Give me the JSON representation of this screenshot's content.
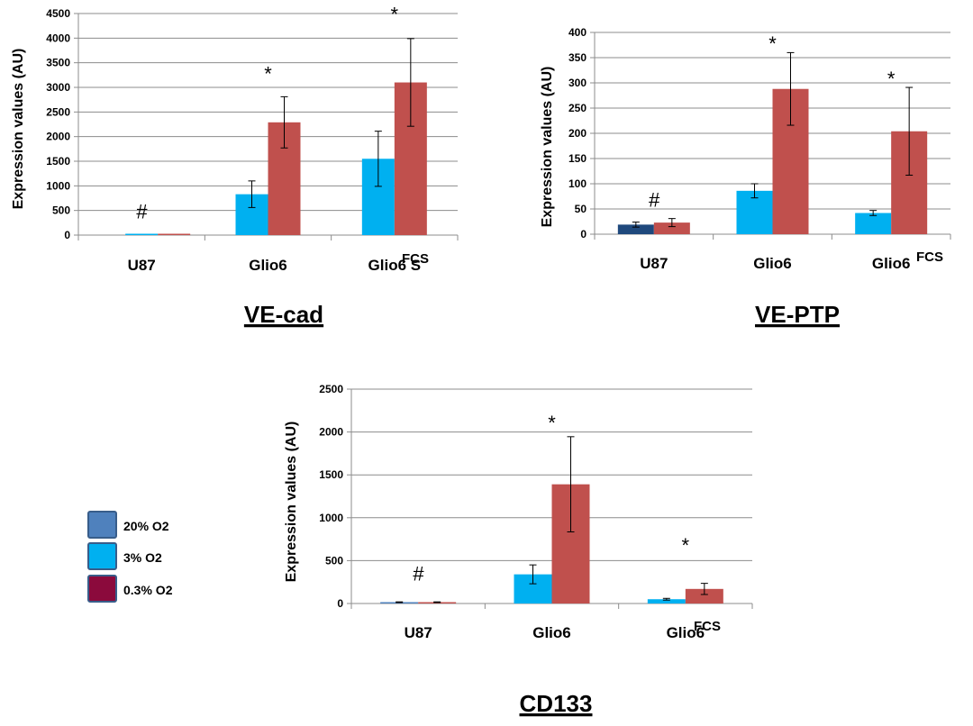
{
  "figure": {
    "legend": {
      "items": [
        {
          "label": "20% O2",
          "color": "#4f81bd"
        },
        {
          "label": " 3% O2",
          "color": "#00b0f0"
        },
        {
          "label": "0.3% O2",
          "color": "#8b0a3c"
        }
      ]
    }
  },
  "chart_data": [
    {
      "type": "bar",
      "title": "VE-cad",
      "ylabel": "Expression values (AU)",
      "ylim": [
        0,
        4500
      ],
      "yticks": [
        0,
        500,
        1000,
        1500,
        2000,
        2500,
        3000,
        3500,
        4000,
        4500
      ],
      "categories": [
        "U87",
        "Glio6",
        "Glio6 S"
      ],
      "category_note": "FCS",
      "series": [
        {
          "name": "20% O2",
          "color": "#1f497d",
          "values": [
            0,
            null,
            null
          ],
          "err": [
            0,
            0,
            0
          ]
        },
        {
          "name": "3% O2",
          "color": "#00b0f0",
          "values": [
            5,
            830,
            1550
          ],
          "err": [
            0,
            270,
            560
          ]
        },
        {
          "name": "0.3% O2",
          "color": "#c0504d",
          "values": [
            5,
            2290,
            3100
          ],
          "err": [
            0,
            520,
            890
          ]
        }
      ],
      "annotations": [
        {
          "text": "#",
          "category": 0,
          "at": 450
        },
        {
          "text": "*",
          "category": 1,
          "at": 3250
        },
        {
          "text": "*",
          "category": 2,
          "at": 4450
        }
      ],
      "grid": true
    },
    {
      "type": "bar",
      "title": "VE-PTP",
      "ylabel": "Expression values (AU)",
      "ylim": [
        0,
        400
      ],
      "yticks": [
        0,
        50,
        100,
        150,
        200,
        250,
        300,
        350,
        400
      ],
      "categories": [
        "U87",
        "Glio6",
        "Glio6"
      ],
      "category_note": "FCS",
      "series": [
        {
          "name": "20% O2",
          "color": "#1f497d",
          "values": [
            19,
            null,
            null
          ],
          "err": [
            5,
            0,
            0
          ]
        },
        {
          "name": "3% O2",
          "color": "#00b0f0",
          "values": [
            null,
            86,
            42
          ],
          "err": [
            0,
            14,
            5
          ]
        },
        {
          "name": "0.3% O2",
          "color": "#c0504d",
          "values": [
            23,
            288,
            204
          ],
          "err": [
            8,
            72,
            87
          ]
        }
      ],
      "annotations": [
        {
          "text": "#",
          "category": 0,
          "at": 65
        },
        {
          "text": "*",
          "category": 1,
          "at": 375
        },
        {
          "text": "*",
          "category": 2,
          "at": 305
        }
      ],
      "grid": true
    },
    {
      "type": "bar",
      "title": "CD133",
      "ylabel": "Expression values (AU)",
      "ylim": [
        0,
        2500
      ],
      "yticks": [
        0,
        500,
        1000,
        1500,
        2000,
        2500
      ],
      "categories": [
        "U87",
        "Glio6",
        "Glio6"
      ],
      "category_note": "FCS",
      "series": [
        {
          "name": "20% O2",
          "color": "#4f81bd",
          "values": [
            null,
            null,
            null
          ],
          "err": [
            0,
            0,
            0
          ]
        },
        {
          "name": "3% O2",
          "color": "#4f81bd",
          "values": [
            15,
            340,
            50
          ],
          "err": [
            4,
            110,
            10
          ]
        },
        {
          "name": "0.3% O2",
          "color": "#c0504d",
          "values": [
            15,
            1390,
            170
          ],
          "err": [
            4,
            555,
            65
          ]
        }
      ],
      "barColors": [
        [
          "#4f81bd",
          "#c0504d"
        ],
        [
          "#00b0f0",
          "#c0504d"
        ],
        [
          "#00b0f0",
          "#c0504d"
        ]
      ],
      "annotations": [
        {
          "text": "#",
          "category": 0,
          "at": 330
        },
        {
          "text": "*",
          "category": 1,
          "at": 2090
        },
        {
          "text": "*",
          "category": 2,
          "at": 660
        }
      ],
      "grid": true
    }
  ]
}
